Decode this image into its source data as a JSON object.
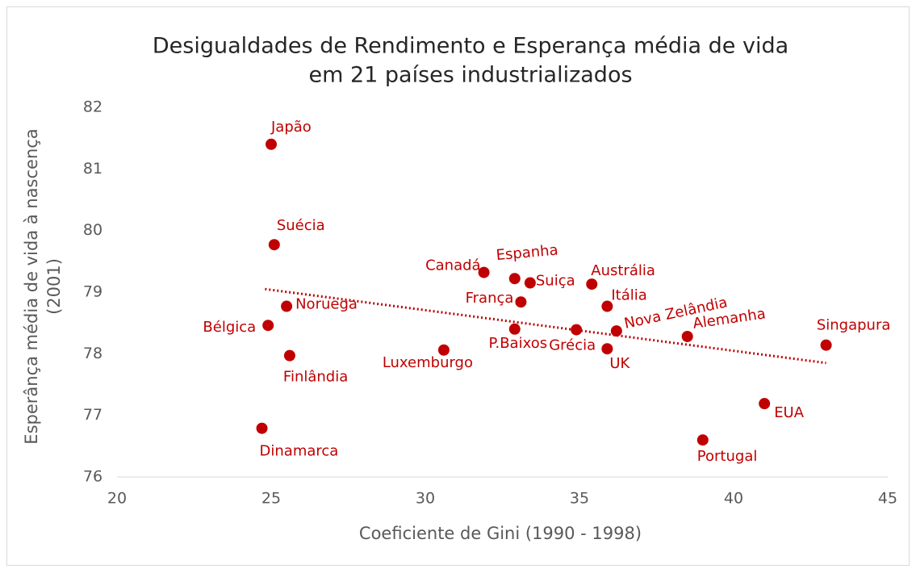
{
  "chart_data": {
    "type": "scatter",
    "title": [
      "Desigualdades de Rendimento e Esperança média de vida",
      "em 21 países industrializados"
    ],
    "x_label": "Coeficiente de Gini (1990 - 1998)",
    "y_label": [
      "Esperânça média de vida à nascença",
      "(2001)"
    ],
    "color": "#c00000",
    "series": [
      {
        "names": [
          "Japão",
          "Suécia",
          "Noruega",
          "Bélgica",
          "Finlândia",
          "Dinamarca",
          "Luxemburgo",
          "Canadá",
          "Espanha",
          "França",
          "Suiça",
          "P.Baixos",
          "Grécia",
          "Austrália",
          "Itália",
          "UK",
          "Nova Zelândia",
          "Alemanha",
          "Singapura",
          "EUA",
          "Portugal"
        ],
        "x": [
          25,
          25.1,
          25.5,
          24.9,
          25.6,
          24.7,
          30.6,
          31.9,
          32.9,
          33.1,
          33.4,
          32.9,
          34.9,
          35.4,
          35.9,
          35.9,
          36.2,
          38.5,
          43,
          41,
          39
        ],
        "values": [
          81.4,
          79.77,
          78.77,
          78.46,
          77.97,
          76.79,
          78.06,
          79.32,
          79.22,
          78.84,
          79.15,
          78.4,
          78.39,
          79.13,
          78.77,
          78.08,
          78.37,
          78.28,
          78.14,
          77.19,
          76.6
        ]
      }
    ],
    "trendline": {
      "x": [
        24.8,
        43
      ],
      "y": [
        79.05,
        77.85
      ]
    },
    "xlim": [
      20,
      45
    ],
    "xticks": [
      20,
      25,
      30,
      35,
      40,
      45
    ],
    "ylim": [
      76,
      82
    ],
    "yticks": [
      76,
      77,
      78,
      79,
      80,
      81,
      82
    ]
  }
}
